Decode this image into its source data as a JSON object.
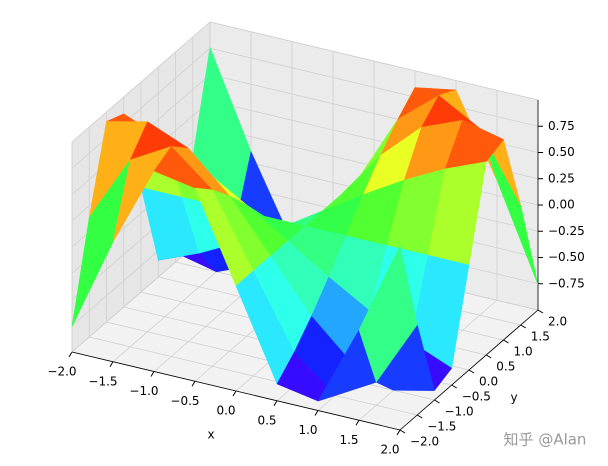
{
  "chart_data": {
    "type": "surface",
    "xlabel": "x",
    "ylabel": "y",
    "x": [
      -2,
      -1.5,
      -1,
      -0.5,
      0,
      0.5,
      1,
      1.5,
      2
    ],
    "y": [
      -2,
      -1.5,
      -1,
      -0.5,
      0,
      0.5,
      1,
      1.5,
      2
    ],
    "z": [
      [
        -0.76,
        0.14,
        0.91,
        0.84,
        0,
        -0.84,
        -0.91,
        -0.14,
        0.76
      ],
      [
        0.14,
        0.78,
        1.0,
        0.68,
        0,
        -0.68,
        -1.0,
        -0.78,
        -0.14
      ],
      [
        0.91,
        1.0,
        0.84,
        0.48,
        0,
        -0.48,
        -0.84,
        -1.0,
        -0.91
      ],
      [
        0.84,
        0.68,
        0.48,
        0.25,
        0,
        -0.25,
        -0.48,
        -0.68,
        -0.84
      ],
      [
        0,
        0,
        0,
        0,
        0,
        0,
        0,
        0,
        0
      ],
      [
        -0.84,
        -0.68,
        -0.48,
        -0.25,
        0,
        0.25,
        0.48,
        0.68,
        0.84
      ],
      [
        -0.91,
        -1.0,
        -0.84,
        -0.48,
        0,
        0.48,
        0.84,
        1.0,
        0.91
      ],
      [
        -0.14,
        -0.78,
        -1.0,
        -0.68,
        0,
        0.68,
        1.0,
        0.78,
        0.14
      ],
      [
        0.76,
        -0.14,
        -0.91,
        -0.84,
        0,
        0.84,
        0.91,
        0.14,
        -0.76
      ]
    ],
    "xlim": [
      -2,
      2
    ],
    "ylim": [
      -2,
      2
    ],
    "zlim": [
      -1,
      1
    ],
    "xticks": [
      {
        "value": -2,
        "label": "−2.0"
      },
      {
        "value": -1.5,
        "label": "−1.5"
      },
      {
        "value": -1,
        "label": "−1.0"
      },
      {
        "value": -0.5,
        "label": "−0.5"
      },
      {
        "value": 0,
        "label": "0.0"
      },
      {
        "value": 0.5,
        "label": "0.5"
      },
      {
        "value": 1,
        "label": "1.0"
      },
      {
        "value": 1.5,
        "label": "1.5"
      },
      {
        "value": 2,
        "label": "2.0"
      }
    ],
    "yticks": [
      {
        "value": -2,
        "label": "−2.0"
      },
      {
        "value": -1.5,
        "label": "−1.5"
      },
      {
        "value": -1,
        "label": "−1.0"
      },
      {
        "value": -0.5,
        "label": "−0.5"
      },
      {
        "value": 0,
        "label": "0.0"
      },
      {
        "value": 0.5,
        "label": "0.5"
      },
      {
        "value": 1,
        "label": "1.0"
      },
      {
        "value": 1.5,
        "label": "1.5"
      },
      {
        "value": 2,
        "label": "2.0"
      }
    ],
    "zticks": [
      {
        "value": -0.75,
        "label": "−0.75"
      },
      {
        "value": -0.5,
        "label": "−0.50"
      },
      {
        "value": -0.25,
        "label": "−0.25"
      },
      {
        "value": 0,
        "label": "0.00"
      },
      {
        "value": 0.25,
        "label": "0.25"
      },
      {
        "value": 0.5,
        "label": "0.50"
      },
      {
        "value": 0.75,
        "label": "0.75"
      }
    ],
    "colormap": "rainbow",
    "grid": true
  },
  "watermark": "知乎 @Alan"
}
